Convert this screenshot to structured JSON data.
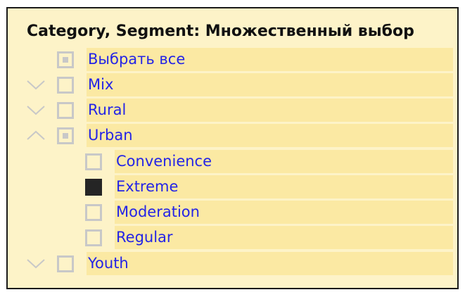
{
  "slicer": {
    "title": "Category, Segment: Множественный выбор",
    "items": [
      {
        "label": "Выбрать все",
        "state": "partial",
        "chevron": "none"
      },
      {
        "label": "Mix",
        "state": "unchecked",
        "chevron": "down"
      },
      {
        "label": "Rural",
        "state": "unchecked",
        "chevron": "down"
      },
      {
        "label": "Urban",
        "state": "partial",
        "chevron": "up"
      },
      {
        "label": "Convenience",
        "state": "unchecked",
        "chevron": "none"
      },
      {
        "label": "Extreme",
        "state": "checked",
        "chevron": "none"
      },
      {
        "label": "Moderation",
        "state": "unchecked",
        "chevron": "none"
      },
      {
        "label": "Regular",
        "state": "unchecked",
        "chevron": "none"
      },
      {
        "label": "Youth",
        "state": "unchecked",
        "chevron": "down"
      }
    ],
    "colors": {
      "background": "#fdf3c8",
      "label_highlight": "#fbe9a3",
      "label_text": "#2424e6",
      "checkbox_border": "#c8c8c8",
      "checkbox_checked": "#252525"
    }
  }
}
